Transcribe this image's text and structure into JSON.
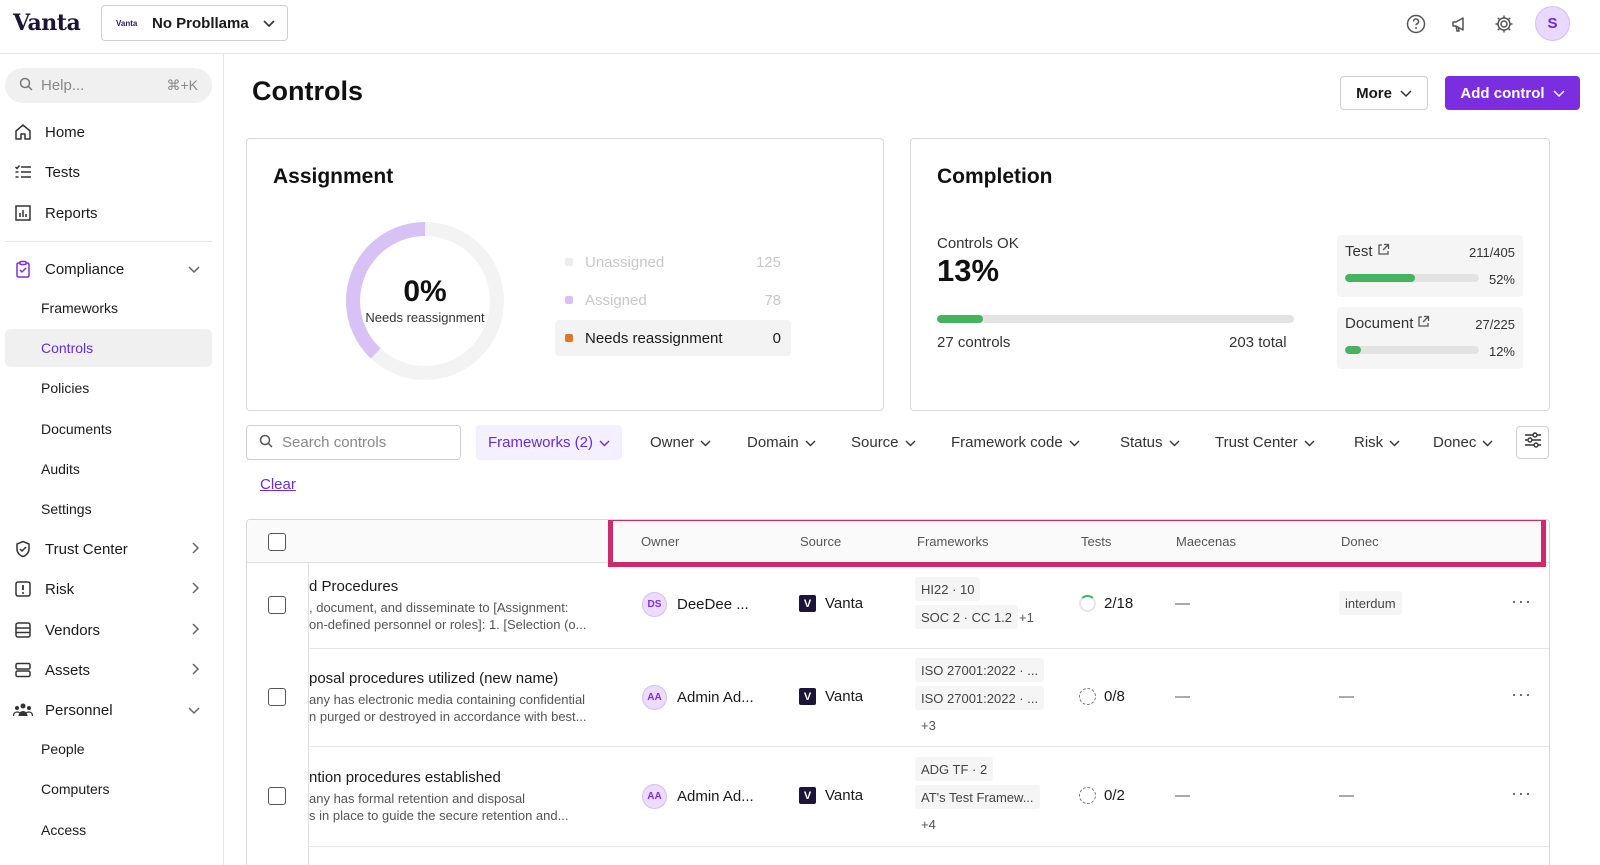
{
  "topbar": {
    "logo": "Vanta",
    "org_logo_text": "Vanta",
    "org_name": "No Probllama",
    "avatar_initial": "S"
  },
  "sidebar": {
    "help_placeholder": "Help...",
    "help_shortcut": "⌘+K",
    "items": [
      {
        "label": "Home",
        "icon": "home-icon"
      },
      {
        "label": "Tests",
        "icon": "list-check-icon"
      },
      {
        "label": "Reports",
        "icon": "chart-icon"
      },
      {
        "label": "Compliance",
        "icon": "clipboard-icon"
      },
      {
        "label": "Trust Center",
        "icon": "shield-icon"
      },
      {
        "label": "Risk",
        "icon": "alert-icon"
      },
      {
        "label": "Vendors",
        "icon": "database-icon"
      },
      {
        "label": "Assets",
        "icon": "server-icon"
      },
      {
        "label": "Personnel",
        "icon": "people-icon"
      }
    ],
    "compliance_sub": [
      "Frameworks",
      "Controls",
      "Policies",
      "Documents",
      "Audits",
      "Settings"
    ],
    "personnel_sub": [
      "People",
      "Computers",
      "Access"
    ],
    "active": "Controls"
  },
  "page": {
    "title": "Controls",
    "more_label": "More",
    "add_label": "Add control"
  },
  "assignment": {
    "title": "Assignment",
    "donut_pct": "0%",
    "donut_sub": "Needs reassignment",
    "legend": [
      {
        "label": "Unassigned",
        "count": "125",
        "color": "#ececec"
      },
      {
        "label": "Assigned",
        "count": "78",
        "color": "#d8c2f5"
      },
      {
        "label": "Needs reassignment",
        "count": "0",
        "color": "#e0752d"
      }
    ],
    "assigned_fraction": 0.38
  },
  "completion": {
    "title": "Completion",
    "label": "Controls OK",
    "pct": "13%",
    "fraction": 0.13,
    "left": "27 controls",
    "right": "203 total",
    "stats": [
      {
        "name": "Test",
        "frac": "211/405",
        "pct": "52%",
        "fraction": 0.52
      },
      {
        "name": "Document",
        "frac": "27/225",
        "pct": "12%",
        "fraction": 0.12
      }
    ]
  },
  "filters": {
    "search_placeholder": "Search controls",
    "items": [
      "Frameworks (2)",
      "Owner",
      "Domain",
      "Source",
      "Framework code",
      "Status",
      "Trust Center",
      "Risk",
      "Donec"
    ],
    "clear": "Clear"
  },
  "table": {
    "headers": [
      "Owner",
      "Source",
      "Frameworks",
      "Tests",
      "Maecenas",
      "Donec"
    ],
    "rows": [
      {
        "title": "d Procedures",
        "desc1": ", document, and disseminate to [Assignment:",
        "desc2": "on-defined personnel or roles]: 1. [Selection (o...",
        "owner_initials": "DS",
        "owner": "DeeDee ...",
        "source": "Vanta",
        "frameworks": [
          "HI22 · 10",
          "SOC 2 · CC 1.2"
        ],
        "fw_more": "+1",
        "tests": "2/18",
        "maecenas": "—",
        "donec": "interdum"
      },
      {
        "title": "posal procedures utilized (new name)",
        "desc1": "any has electronic media containing confidential",
        "desc2": "n purged or destroyed in accordance with best...",
        "owner_initials": "AA",
        "owner": "Admin Ad...",
        "source": "Vanta",
        "frameworks": [
          "ISO 27001:2022 · ...",
          "ISO 27001:2022 · ..."
        ],
        "fw_more": "+3",
        "tests": "0/8",
        "maecenas": "—",
        "donec": "—"
      },
      {
        "title": "ntion procedures established",
        "desc1": "any has formal retention and disposal",
        "desc2": "s in place to guide the secure retention and...",
        "owner_initials": "AA",
        "owner": "Admin Ad...",
        "source": "Vanta",
        "frameworks": [
          "ADG TF · 2",
          "AT's Test Framew..."
        ],
        "fw_more": "+4",
        "tests": "0/2",
        "maecenas": "—",
        "donec": "—"
      }
    ]
  },
  "colors": {
    "accent": "#7b2ee0",
    "highlight": "#cc2a6c",
    "progress": "#45b45d"
  }
}
